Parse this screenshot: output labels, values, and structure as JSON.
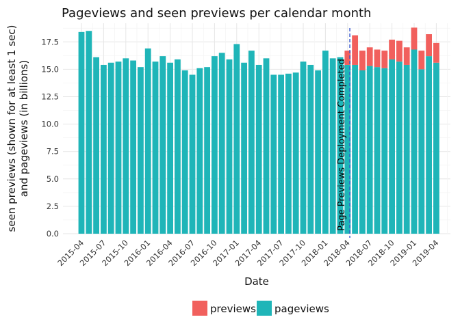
{
  "chart_data": {
    "type": "bar",
    "stacked": true,
    "title": "Pageviews and seen previews per calendar month",
    "xlabel": "Date",
    "ylabel_line1": "seen previews (shown for at least 1 sec)",
    "ylabel_line2": "and pageviews (in billions)",
    "ylim": [
      0,
      19.2
    ],
    "y_ticks": [
      0,
      2.5,
      5,
      7.5,
      10,
      12.5,
      15,
      17.5
    ],
    "y_tick_labels": [
      "0.0",
      "2.5",
      "5.0",
      "7.5",
      "10.0",
      "12.5",
      "15.0",
      "17.5"
    ],
    "x_tick_labels": [
      "2015-04",
      "2015-07",
      "2015-10",
      "2016-01",
      "2016-04",
      "2016-07",
      "2016-10",
      "2017-01",
      "2017-04",
      "2017-07",
      "2017-10",
      "2018-01",
      "2018-04",
      "2018-07",
      "2018-10",
      "2019-01",
      "2019-04"
    ],
    "grid": true,
    "legend_position": "bottom",
    "colors": {
      "previews": "#F1605D",
      "pageviews": "#1FB5B8",
      "annotation_line": "#3355CC"
    },
    "months": [
      "2015-04",
      "2015-05",
      "2015-06",
      "2015-07",
      "2015-08",
      "2015-09",
      "2015-10",
      "2015-11",
      "2015-12",
      "2016-01",
      "2016-02",
      "2016-03",
      "2016-04",
      "2016-05",
      "2016-06",
      "2016-07",
      "2016-08",
      "2016-09",
      "2016-10",
      "2016-11",
      "2016-12",
      "2017-01",
      "2017-02",
      "2017-03",
      "2017-04",
      "2017-05",
      "2017-06",
      "2017-07",
      "2017-08",
      "2017-09",
      "2017-10",
      "2017-11",
      "2017-12",
      "2018-01",
      "2018-02",
      "2018-03",
      "2018-04",
      "2018-05",
      "2018-06",
      "2018-07",
      "2018-08",
      "2018-09",
      "2018-10",
      "2018-11",
      "2018-12",
      "2019-01",
      "2019-02",
      "2019-03",
      "2019-04"
    ],
    "series": [
      {
        "name": "pageviews",
        "values": [
          18.4,
          18.5,
          16.1,
          15.4,
          15.6,
          15.7,
          16.0,
          15.8,
          15.2,
          16.9,
          15.7,
          16.2,
          15.6,
          15.9,
          14.9,
          14.5,
          15.1,
          15.2,
          16.2,
          16.5,
          15.9,
          17.3,
          15.6,
          16.7,
          15.4,
          16.0,
          14.5,
          14.5,
          14.6,
          14.7,
          15.7,
          15.4,
          14.9,
          16.7,
          16.0,
          16.1,
          15.4,
          15.4,
          14.9,
          15.3,
          15.2,
          15.1,
          15.9,
          15.7,
          15.4,
          16.8,
          15.0,
          16.2,
          15.6
        ]
      },
      {
        "name": "previews",
        "values": [
          0,
          0,
          0,
          0,
          0,
          0,
          0,
          0,
          0,
          0,
          0,
          0,
          0,
          0,
          0,
          0,
          0,
          0,
          0,
          0,
          0,
          0,
          0,
          0,
          0,
          0,
          0,
          0,
          0,
          0,
          0,
          0,
          0,
          0,
          0,
          0,
          1.3,
          2.7,
          1.8,
          1.7,
          1.6,
          1.6,
          1.8,
          1.9,
          1.6,
          2.0,
          1.7,
          2.0,
          1.8
        ]
      }
    ],
    "annotation": {
      "label": "Page Previews Deployment Completed",
      "x": "2018-04-10"
    }
  }
}
